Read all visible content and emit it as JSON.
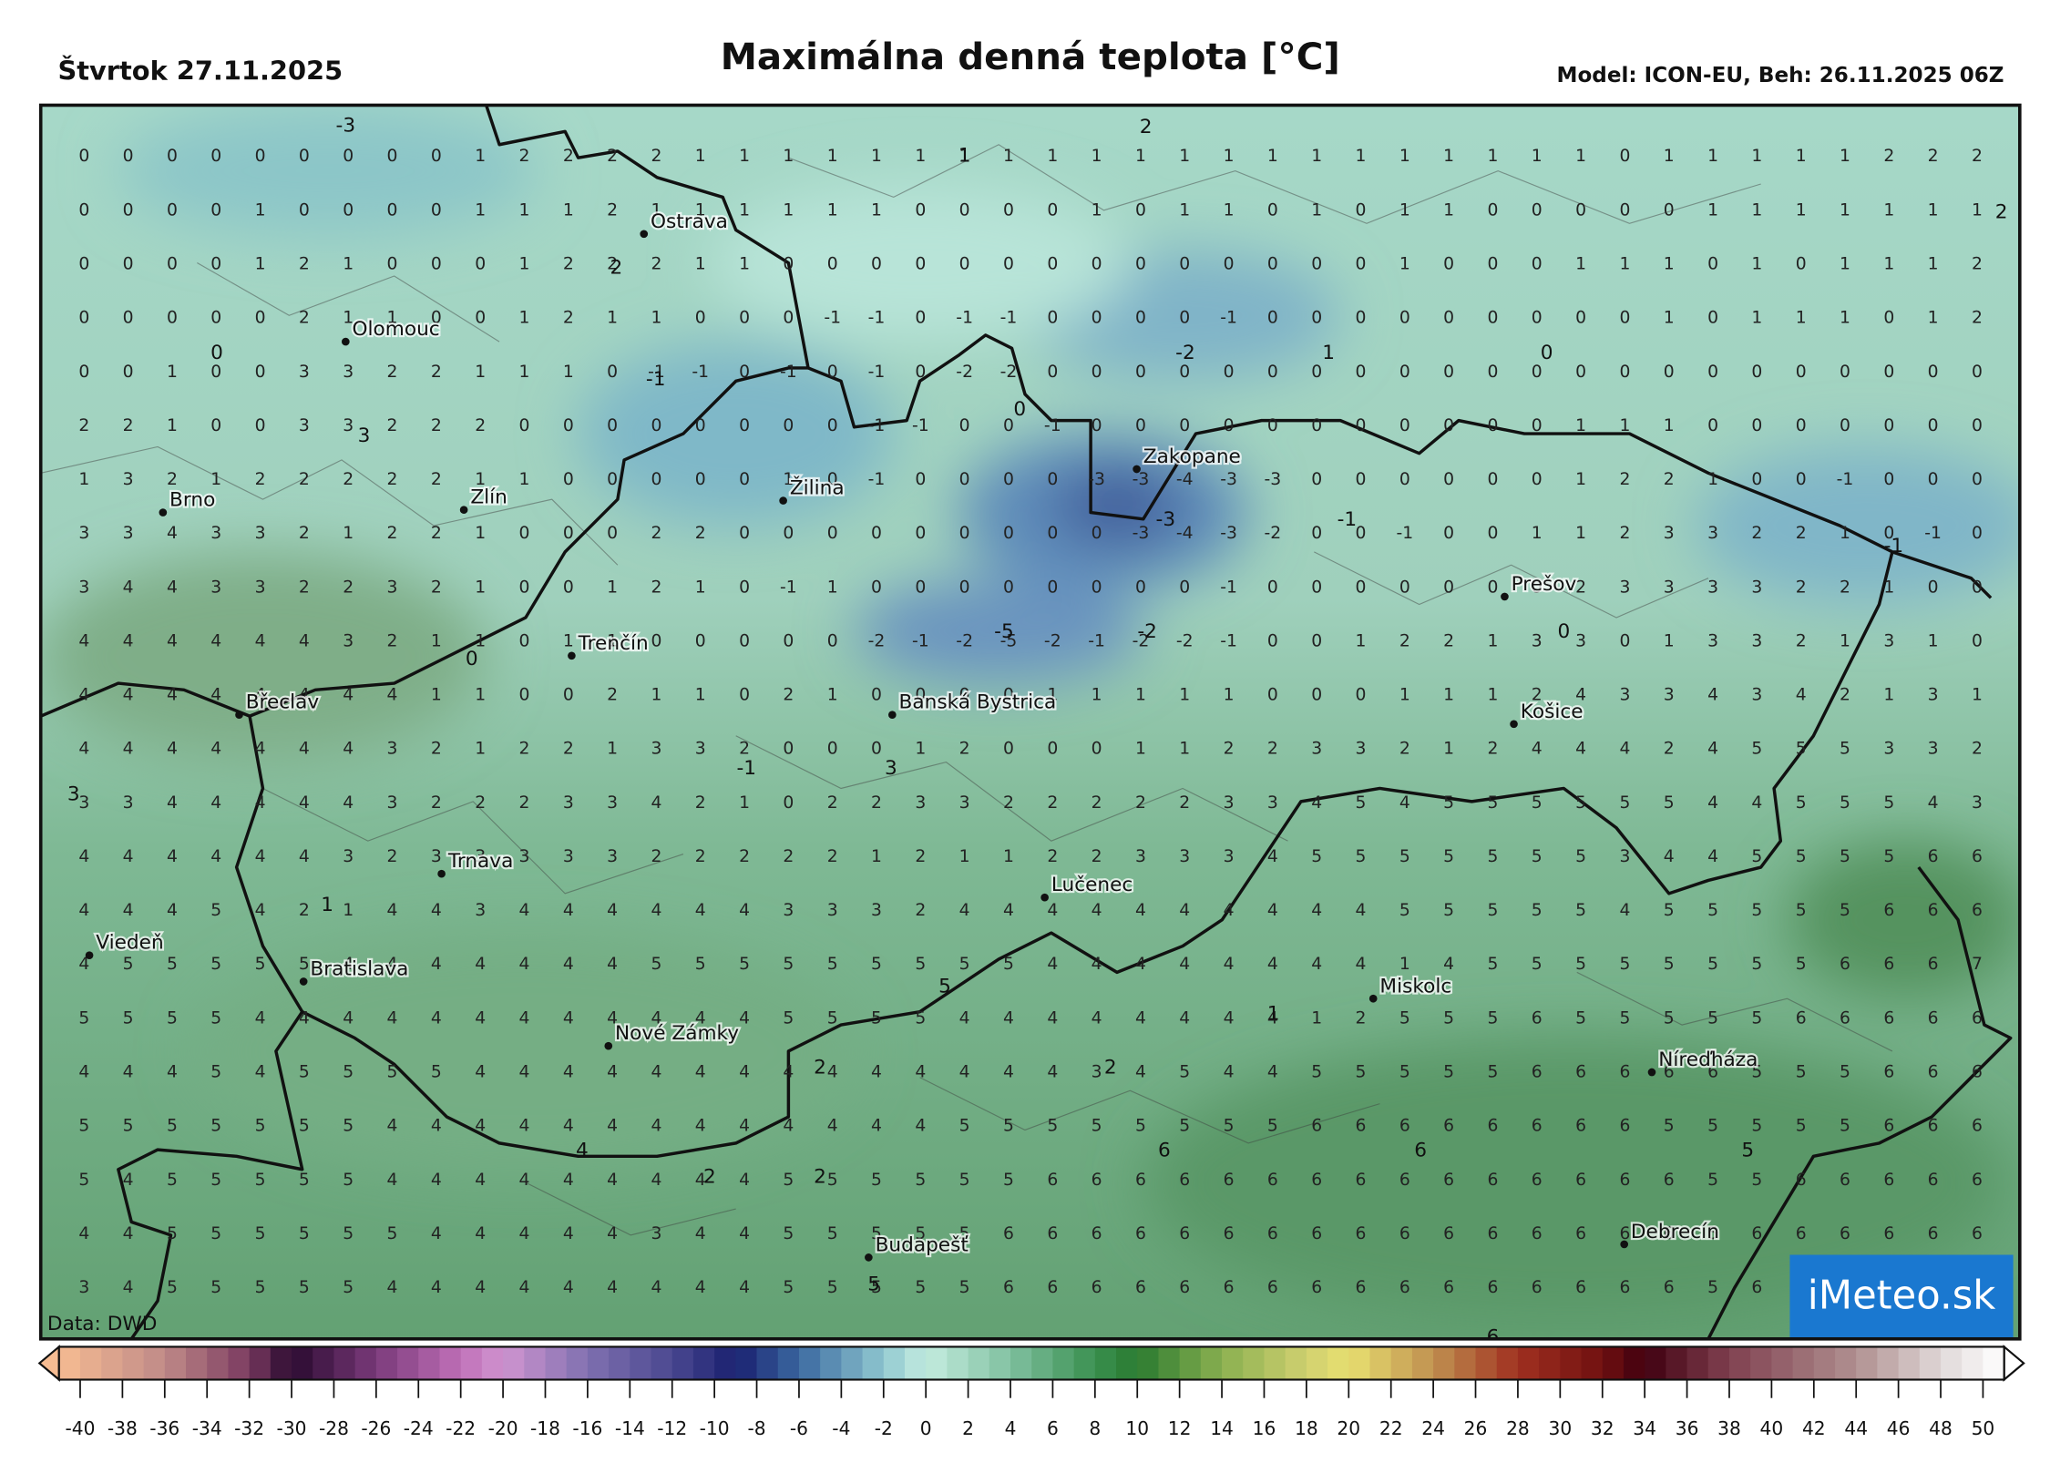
{
  "header": {
    "date": "Štvrtok 27.11.2025",
    "title": "Maximálna denná teplota [°C]",
    "model": "Model: ICON-EU, Beh: 26.11.2025 06Z"
  },
  "map": {
    "source": "Data: DWD",
    "logo": "iMeteo.sk",
    "cities": [
      "Ostrava",
      "Olomouc",
      "Brno",
      "Zlín",
      "Žilina",
      "Zakopane",
      "Trenčín",
      "Prešov",
      "Břeclav",
      "Banská Bystrica",
      "Košice",
      "Trnava",
      "Lučenec",
      "Viedeň",
      "Bratislava",
      "Miskolc",
      "Nové Zámky",
      "Níreďháza",
      "Budapešť",
      "Debrecín"
    ],
    "contour_labels": [
      -3,
      2,
      1,
      2,
      2,
      0,
      -1,
      -2,
      1,
      0,
      0,
      3,
      -3,
      -1,
      -1,
      -5,
      -2,
      0,
      0,
      -1,
      3,
      3,
      1,
      5,
      1,
      2,
      2,
      4,
      2,
      2,
      6,
      6,
      5,
      5,
      6
    ],
    "grid": {
      "rows": [
        [
          0,
          0,
          0,
          0,
          0,
          0,
          0,
          0,
          0,
          1,
          2,
          2,
          2,
          2,
          1,
          1,
          1,
          1,
          1,
          1,
          1,
          1,
          1,
          1,
          1,
          1,
          1,
          1,
          1,
          1,
          1,
          1,
          1,
          1,
          1,
          0,
          1,
          1,
          1,
          1,
          1,
          2,
          2,
          2
        ],
        [
          0,
          0,
          0,
          0,
          1,
          0,
          0,
          0,
          0,
          1,
          1,
          1,
          2,
          1,
          1,
          1,
          1,
          1,
          1,
          0,
          0,
          0,
          0,
          1,
          0,
          1,
          1,
          0,
          1,
          0,
          1,
          1,
          0,
          0,
          0,
          0,
          0,
          1,
          1,
          1,
          1,
          1,
          1,
          1
        ],
        [
          0,
          0,
          0,
          0,
          1,
          2,
          1,
          0,
          0,
          0,
          1,
          2,
          2,
          2,
          1,
          1,
          0,
          0,
          0,
          0,
          0,
          0,
          0,
          0,
          0,
          0,
          0,
          0,
          0,
          0,
          1,
          0,
          0,
          0,
          1,
          1,
          1,
          0,
          1,
          0,
          1,
          1,
          1,
          2
        ],
        [
          0,
          0,
          0,
          0,
          0,
          2,
          1,
          1,
          0,
          0,
          1,
          2,
          1,
          1,
          0,
          0,
          0,
          -1,
          -1,
          0,
          -1,
          -1,
          0,
          0,
          0,
          0,
          -1,
          0,
          0,
          0,
          0,
          0,
          0,
          0,
          0,
          0,
          1,
          0,
          1,
          1,
          1,
          0,
          1,
          2
        ],
        [
          0,
          0,
          1,
          0,
          0,
          3,
          3,
          2,
          2,
          1,
          1,
          1,
          0,
          -1,
          -1,
          0,
          -1,
          0,
          -1,
          0,
          -2,
          -2,
          0,
          0,
          0,
          0,
          0,
          0,
          0,
          0,
          0,
          0,
          0,
          0,
          0,
          0,
          0,
          0,
          0,
          0,
          0,
          0,
          0,
          0
        ],
        [
          2,
          2,
          1,
          0,
          0,
          3,
          3,
          2,
          2,
          2,
          0,
          0,
          0,
          0,
          0,
          0,
          0,
          0,
          -1,
          -1,
          0,
          0,
          -1,
          0,
          0,
          0,
          0,
          0,
          0,
          0,
          0,
          0,
          0,
          0,
          1,
          1,
          1,
          0,
          0,
          0,
          0,
          0,
          0,
          0
        ],
        [
          1,
          3,
          2,
          1,
          2,
          2,
          2,
          2,
          2,
          1,
          1,
          0,
          0,
          0,
          0,
          0,
          1,
          0,
          -1,
          0,
          0,
          0,
          0,
          -3,
          -3,
          -4,
          -3,
          -3,
          0,
          0,
          0,
          0,
          0,
          0,
          1,
          2,
          2,
          1,
          0,
          0,
          -1,
          0,
          0,
          0
        ],
        [
          3,
          3,
          4,
          3,
          3,
          2,
          1,
          2,
          2,
          1,
          0,
          0,
          0,
          2,
          2,
          0,
          0,
          0,
          0,
          0,
          0,
          0,
          0,
          0,
          -3,
          -4,
          -3,
          -2,
          0,
          0,
          -1,
          0,
          0,
          1,
          1,
          2,
          3,
          3,
          2,
          2,
          1,
          0,
          -1,
          0
        ],
        [
          3,
          4,
          4,
          3,
          3,
          2,
          2,
          3,
          2,
          1,
          0,
          0,
          1,
          2,
          1,
          0,
          -1,
          1,
          0,
          0,
          0,
          0,
          0,
          0,
          0,
          0,
          -1,
          0,
          0,
          0,
          0,
          0,
          0,
          0,
          2,
          3,
          3,
          3,
          3,
          2,
          2,
          1,
          0,
          0
        ],
        [
          4,
          4,
          4,
          4,
          4,
          4,
          3,
          2,
          1,
          1,
          0,
          1,
          1,
          0,
          0,
          0,
          0,
          0,
          -2,
          -1,
          -2,
          -5,
          -2,
          -1,
          -2,
          -2,
          -1,
          0,
          0,
          1,
          2,
          2,
          1,
          3,
          3,
          0,
          1,
          3,
          3,
          2,
          1,
          3,
          1,
          0
        ],
        [
          4,
          4,
          4,
          4,
          4,
          4,
          4,
          4,
          1,
          1,
          0,
          0,
          2,
          1,
          1,
          0,
          2,
          1,
          0,
          0,
          0,
          0,
          1,
          1,
          1,
          1,
          1,
          0,
          0,
          0,
          1,
          1,
          1,
          2,
          4,
          3,
          3,
          4,
          3,
          4,
          2,
          1,
          3,
          1
        ],
        [
          4,
          4,
          4,
          4,
          4,
          4,
          4,
          3,
          2,
          1,
          2,
          2,
          1,
          3,
          3,
          2,
          0,
          0,
          0,
          1,
          2,
          0,
          0,
          0,
          1,
          1,
          2,
          2,
          3,
          3,
          2,
          1,
          2,
          4,
          4,
          4,
          2,
          4,
          5,
          5,
          5,
          3,
          3,
          2
        ],
        [
          3,
          3,
          4,
          4,
          4,
          4,
          4,
          3,
          2,
          2,
          2,
          3,
          3,
          4,
          2,
          1,
          0,
          2,
          2,
          3,
          3,
          2,
          2,
          2,
          2,
          2,
          3,
          3,
          4,
          5,
          4,
          5,
          5,
          5,
          5,
          5,
          5,
          4,
          4,
          5,
          5,
          5,
          4,
          3
        ],
        [
          4,
          4,
          4,
          4,
          4,
          4,
          3,
          2,
          3,
          3,
          3,
          3,
          3,
          2,
          2,
          2,
          2,
          2,
          1,
          2,
          1,
          1,
          2,
          2,
          3,
          3,
          3,
          4,
          5,
          5,
          5,
          5,
          5,
          5,
          5,
          3,
          4,
          4,
          5,
          5,
          5,
          5,
          6,
          6
        ],
        [
          4,
          4,
          4,
          5,
          4,
          2,
          1,
          4,
          4,
          3,
          4,
          4,
          4,
          4,
          4,
          4,
          3,
          3,
          3,
          2,
          4,
          4,
          4,
          4,
          4,
          4,
          4,
          4,
          4,
          4,
          5,
          5,
          5,
          5,
          5,
          4,
          5,
          5,
          5,
          5,
          5,
          6,
          6,
          6
        ],
        [
          4,
          5,
          5,
          5,
          5,
          5,
          4,
          4,
          4,
          4,
          4,
          4,
          4,
          5,
          5,
          5,
          5,
          5,
          5,
          5,
          5,
          5,
          4,
          4,
          4,
          4,
          4,
          4,
          4,
          4,
          1,
          4,
          5,
          5,
          5,
          5,
          5,
          5,
          5,
          5,
          6,
          6,
          6,
          7
        ],
        [
          5,
          5,
          5,
          5,
          4,
          4,
          4,
          4,
          4,
          4,
          4,
          4,
          4,
          4,
          4,
          4,
          5,
          5,
          5,
          5,
          4,
          4,
          4,
          4,
          4,
          4,
          4,
          4,
          1,
          2,
          5,
          5,
          5,
          6,
          5,
          5,
          5,
          5,
          5,
          6,
          6,
          6,
          6,
          6
        ],
        [
          4,
          4,
          4,
          5,
          4,
          5,
          5,
          5,
          5,
          4,
          4,
          4,
          4,
          4,
          4,
          4,
          4,
          4,
          4,
          4,
          4,
          4,
          4,
          3,
          4,
          5,
          4,
          4,
          5,
          5,
          5,
          5,
          5,
          6,
          6,
          6,
          6,
          6,
          5,
          5,
          5,
          6,
          6,
          6
        ],
        [
          5,
          5,
          5,
          5,
          5,
          5,
          5,
          4,
          4,
          4,
          4,
          4,
          4,
          4,
          4,
          4,
          4,
          4,
          4,
          4,
          5,
          5,
          5,
          5,
          5,
          5,
          5,
          5,
          6,
          6,
          6,
          6,
          6,
          6,
          6,
          6,
          5,
          5,
          5,
          5,
          5,
          6,
          6,
          6
        ],
        [
          5,
          4,
          5,
          5,
          5,
          5,
          5,
          4,
          4,
          4,
          4,
          4,
          4,
          4,
          4,
          4,
          5,
          5,
          5,
          5,
          5,
          5,
          6,
          6,
          6,
          6,
          6,
          6,
          6,
          6,
          6,
          6,
          6,
          6,
          6,
          6,
          6,
          5,
          5,
          6,
          6,
          6,
          6,
          6
        ],
        [
          4,
          4,
          5,
          5,
          5,
          5,
          5,
          5,
          4,
          4,
          4,
          4,
          4,
          3,
          4,
          4,
          5,
          5,
          5,
          5,
          5,
          6,
          6,
          6,
          6,
          6,
          6,
          6,
          6,
          6,
          6,
          6,
          6,
          6,
          6,
          6,
          6,
          5,
          6,
          6,
          6,
          6,
          6,
          6
        ],
        [
          3,
          4,
          5,
          5,
          5,
          5,
          5,
          4,
          4,
          4,
          4,
          4,
          4,
          4,
          4,
          4,
          5,
          5,
          5,
          5,
          5,
          6,
          6,
          6,
          6,
          6,
          6,
          6,
          6,
          6,
          6,
          6,
          6,
          6,
          6,
          6,
          6,
          5,
          6,
          6,
          6,
          6,
          6,
          6
        ]
      ]
    }
  },
  "colorbar": {
    "ticks": [
      -40,
      -38,
      -36,
      -34,
      -32,
      -30,
      -28,
      -26,
      -24,
      -22,
      -20,
      -18,
      -16,
      -14,
      -12,
      -10,
      -8,
      -6,
      -4,
      -2,
      0,
      2,
      4,
      6,
      8,
      10,
      12,
      14,
      16,
      18,
      20,
      22,
      24,
      26,
      28,
      30,
      32,
      34,
      36,
      38,
      40,
      42,
      44,
      46,
      48,
      50
    ]
  }
}
